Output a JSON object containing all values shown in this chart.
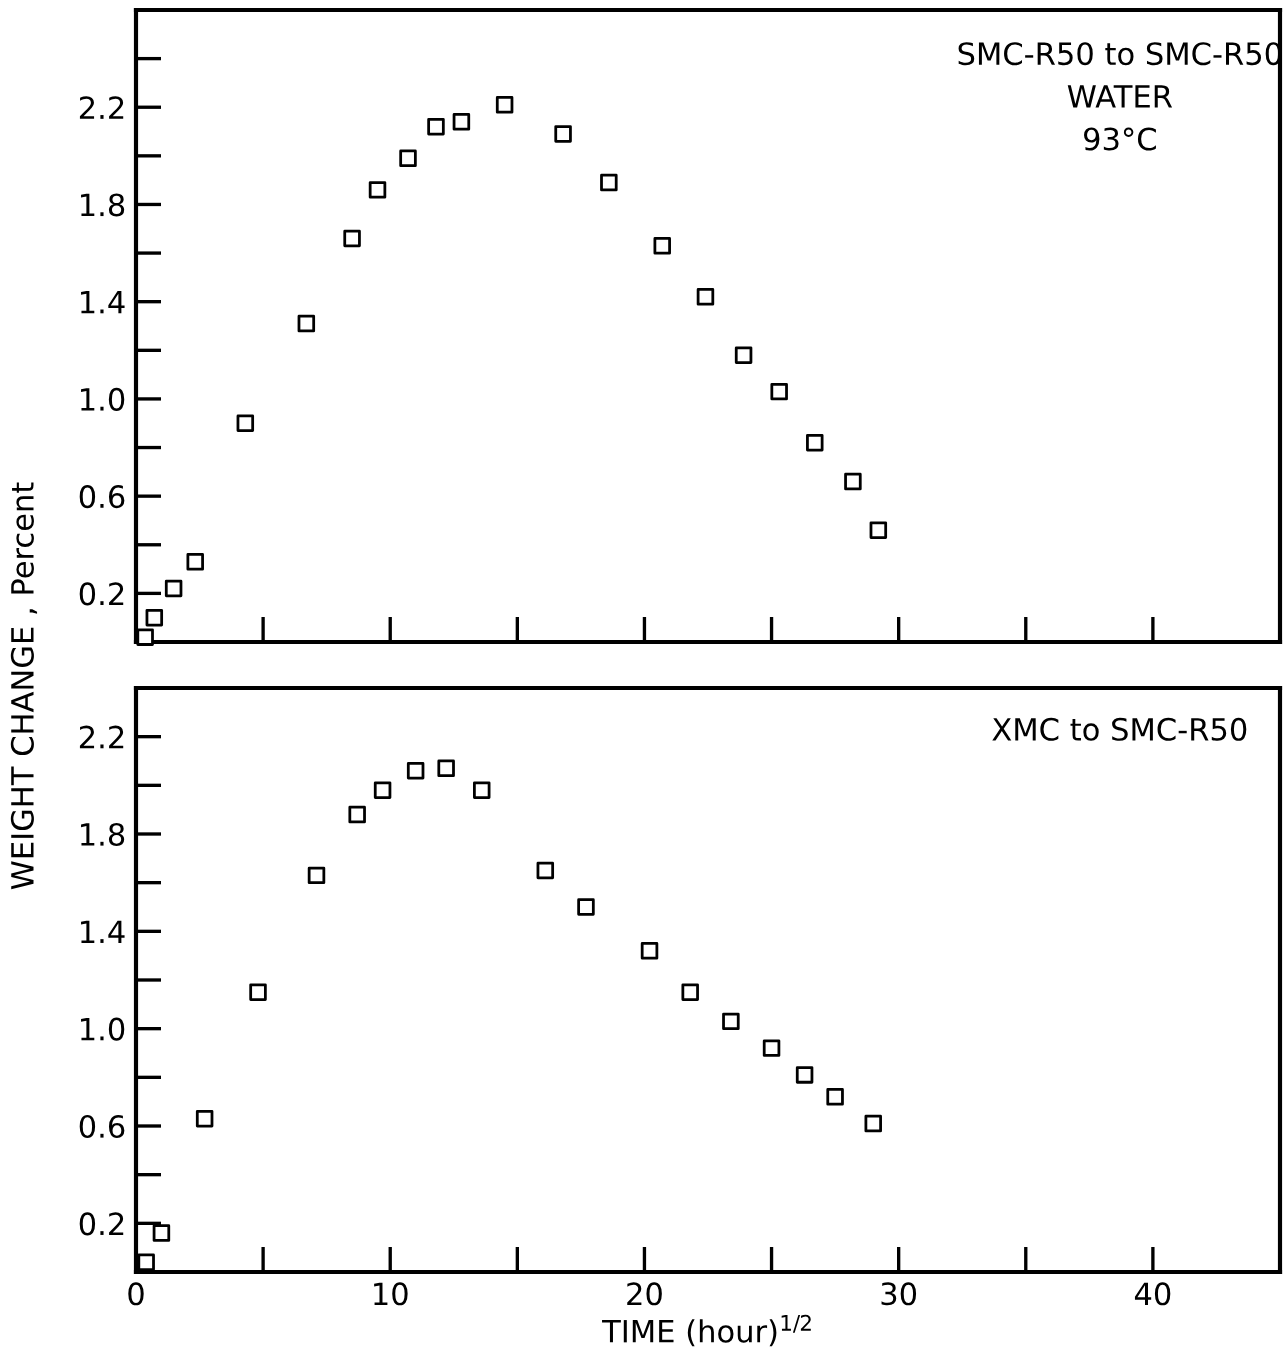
{
  "chart_data": [
    {
      "type": "scatter",
      "ylabel": "WEIGHT CHANGE , Percent",
      "annotations": [
        "SMC-R50 to SMC-R50",
        "WATER",
        "93°C"
      ],
      "marker": "square",
      "grid": false,
      "tick_labels": "y",
      "xlim": [
        0,
        45
      ],
      "xticks": [
        0,
        {
          "value": 5,
          "label": null
        },
        10,
        {
          "value": 15,
          "label": null
        },
        20,
        {
          "value": 25,
          "label": null
        },
        30,
        {
          "value": 35,
          "label": null
        },
        40,
        {
          "value": 45,
          "label": null
        }
      ],
      "ylim": [
        0,
        2.6
      ],
      "yticks": [
        0.2,
        {
          "value": 0.4,
          "label": null
        },
        0.6,
        {
          "value": 0.8,
          "label": null
        },
        {
          "value": 1.0,
          "label": "1.0"
        },
        {
          "value": 1.2,
          "label": null
        },
        1.4,
        {
          "value": 1.6,
          "label": null
        },
        1.8,
        {
          "value": 2.0,
          "label": null
        },
        2.2,
        {
          "value": 2.4,
          "label": null
        }
      ],
      "series": [
        {
          "color": "#000000",
          "x": [
            0.36,
            0.72,
            1.48,
            2.33,
            4.3,
            6.7,
            8.5,
            9.5,
            10.7,
            11.8,
            12.8,
            14.5,
            16.8,
            18.6,
            20.7,
            22.4,
            23.9,
            25.3,
            26.7,
            28.2,
            29.2
          ],
          "values": [
            0.02,
            0.1,
            0.22,
            0.33,
            0.9,
            1.31,
            1.66,
            1.86,
            1.99,
            2.12,
            2.14,
            2.21,
            2.09,
            1.89,
            1.63,
            1.42,
            1.18,
            1.03,
            0.82,
            0.66,
            0.46
          ]
        }
      ]
    },
    {
      "type": "scatter",
      "xlabel": "TIME (hour)$^{1/2}$",
      "annotations": [
        "XMC to SMC-R50"
      ],
      "marker": "square",
      "grid": false,
      "xlim": [
        0,
        45
      ],
      "xticks": [
        0,
        {
          "value": 5,
          "label": null
        },
        10,
        {
          "value": 15,
          "label": null
        },
        20,
        {
          "value": 25,
          "label": null
        },
        30,
        {
          "value": 35,
          "label": null
        },
        40,
        {
          "value": 45,
          "label": null
        }
      ],
      "ylim": [
        0,
        2.4
      ],
      "yticks": [
        0.2,
        {
          "value": 0.4,
          "label": null
        },
        0.6,
        {
          "value": 0.8,
          "label": null
        },
        {
          "value": 1.0,
          "label": "1.0"
        },
        {
          "value": 1.2,
          "label": null
        },
        1.4,
        {
          "value": 1.6,
          "label": null
        },
        1.8,
        {
          "value": 2.0,
          "label": null
        },
        2.2
      ],
      "series": [
        {
          "color": "#000000",
          "x": [
            0.4,
            1.0,
            2.7,
            4.8,
            7.1,
            8.7,
            9.7,
            11.0,
            12.2,
            13.6,
            16.1,
            17.7,
            20.2,
            21.8,
            23.4,
            25.0,
            26.3,
            27.5,
            29.0
          ],
          "values": [
            0.04,
            0.16,
            0.63,
            1.15,
            1.63,
            1.88,
            1.98,
            2.06,
            2.07,
            1.98,
            1.65,
            1.5,
            1.32,
            1.15,
            1.03,
            0.92,
            0.81,
            0.72,
            0.61
          ]
        }
      ]
    }
  ]
}
